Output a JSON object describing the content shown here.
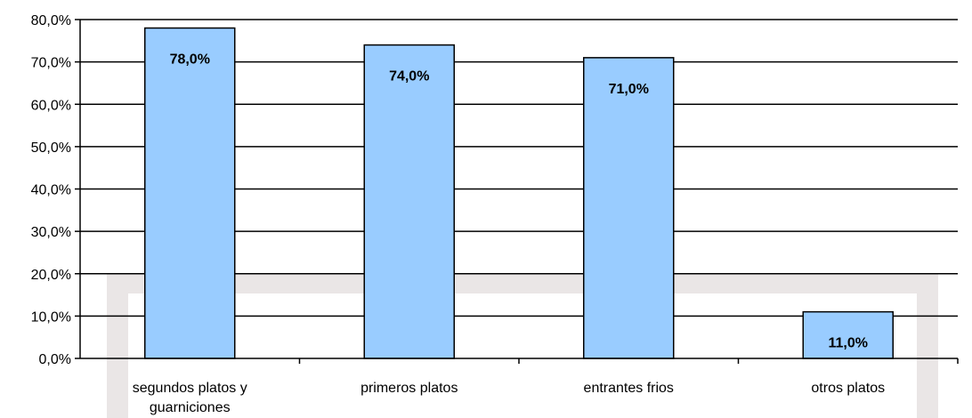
{
  "chart_data": {
    "type": "bar",
    "categories": [
      [
        "segundos platos y",
        "guarniciones"
      ],
      [
        "primeros platos"
      ],
      [
        "entrantes frios"
      ],
      [
        "otros platos"
      ]
    ],
    "values": [
      78.0,
      74.0,
      71.0,
      11.0
    ],
    "data_labels": [
      "78,0%",
      "74,0%",
      "71,0%",
      "11,0%"
    ],
    "y_ticks": [
      {
        "value": 0,
        "label": "0,0%"
      },
      {
        "value": 10,
        "label": "10,0%"
      },
      {
        "value": 20,
        "label": "20,0%"
      },
      {
        "value": 30,
        "label": "30,0%"
      },
      {
        "value": 40,
        "label": "40,0%"
      },
      {
        "value": 50,
        "label": "50,0%"
      },
      {
        "value": 60,
        "label": "60,0%"
      },
      {
        "value": 70,
        "label": "70,0%"
      },
      {
        "value": 80,
        "label": "80,0%"
      }
    ],
    "ylim": [
      0,
      80
    ],
    "grid": true,
    "legend": "none",
    "title": "",
    "xlabel": "",
    "ylabel": "",
    "colors": {
      "bar_fill": "#99ccff",
      "bar_stroke": "#000000",
      "grid": "#000000",
      "watermark": "#eae6e6"
    }
  }
}
